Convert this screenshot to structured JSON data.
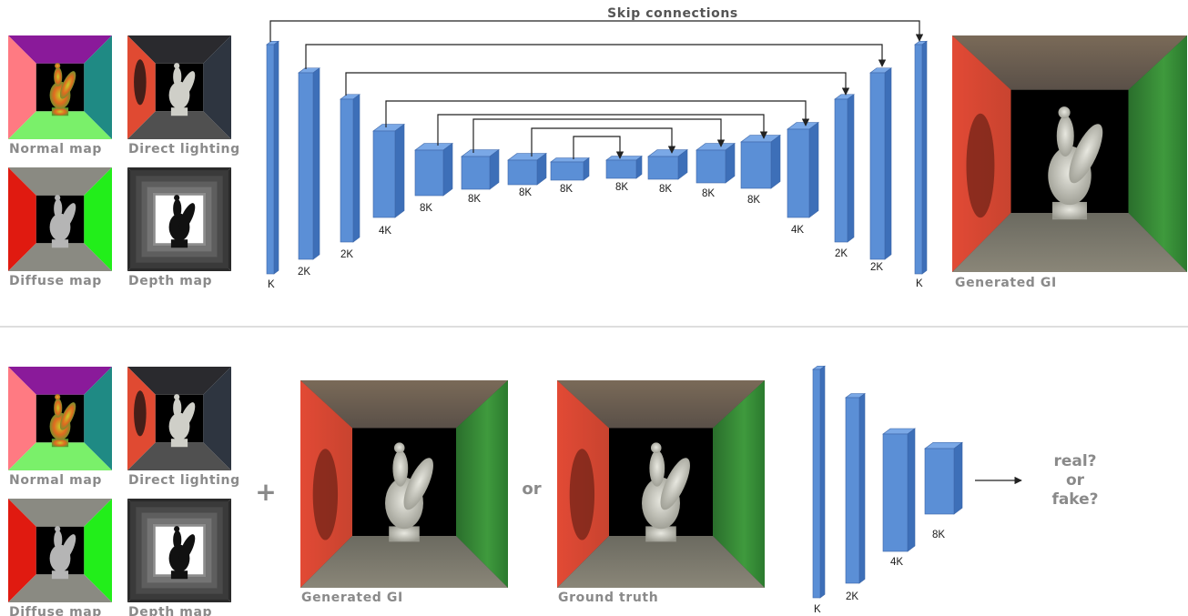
{
  "top": {
    "skip_title": "Skip connections",
    "inputs": [
      {
        "caption": "Normal map",
        "kind": "normal"
      },
      {
        "caption": "Direct lighting",
        "kind": "direct"
      },
      {
        "caption": "Diffuse map",
        "kind": "diffuse"
      },
      {
        "caption": "Depth map",
        "kind": "depth"
      }
    ],
    "layers": [
      "K",
      "2K",
      "2K",
      "4K",
      "8K",
      "8K",
      "8K",
      "8K",
      "8K",
      "8K",
      "8K",
      "8K",
      "4K",
      "2K",
      "2K",
      "K"
    ],
    "output_caption": "Generated GI"
  },
  "bottom": {
    "inputs": [
      {
        "caption": "Normal map",
        "kind": "normal"
      },
      {
        "caption": "Direct lighting",
        "kind": "direct"
      },
      {
        "caption": "Diffuse map",
        "kind": "diffuse"
      },
      {
        "caption": "Depth map",
        "kind": "depth"
      }
    ],
    "plus": "+",
    "generated_caption": "Generated GI",
    "or": "or",
    "truth_caption": "Ground truth",
    "layers": [
      "K",
      "2K",
      "4K",
      "8K"
    ],
    "verdict": [
      "real?",
      "or",
      "fake?"
    ]
  },
  "colors": {
    "block_front": "#5b8fd6",
    "block_top": "#7aa8e6",
    "block_side": "#3d6fb8",
    "wall_red": "#e8553e",
    "wall_green": "#2e8a32",
    "caption_gray": "#8a8a8a"
  }
}
